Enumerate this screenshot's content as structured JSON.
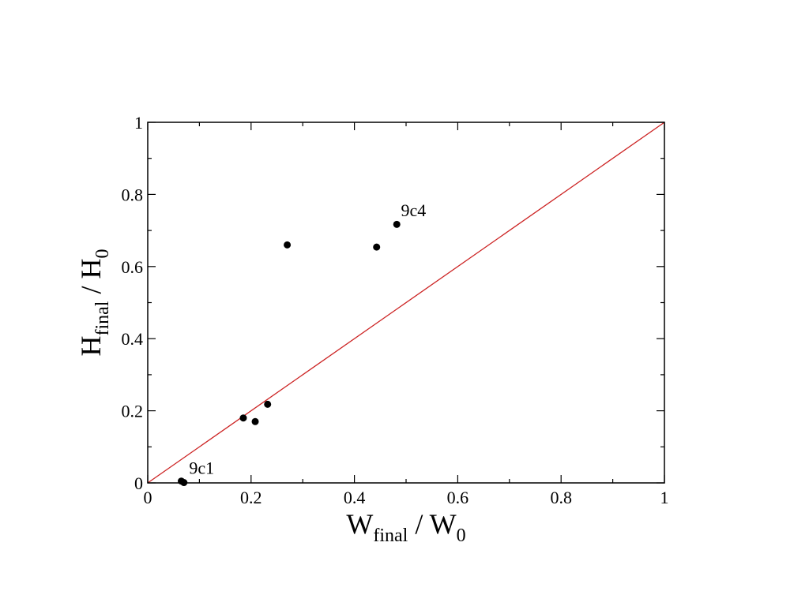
{
  "chart_data": {
    "type": "scatter",
    "xlabel": {
      "main": "W",
      "sub": "final",
      "suffix": " / W",
      "suffix_sub": "0"
    },
    "ylabel": {
      "main": "H",
      "sub": "final",
      "suffix": " / H",
      "suffix_sub": "0"
    },
    "xlim": [
      0,
      1
    ],
    "ylim": [
      0,
      1
    ],
    "x_ticks": [
      0,
      0.2,
      0.4,
      0.6,
      0.8,
      1
    ],
    "y_ticks": [
      0,
      0.2,
      0.4,
      0.6,
      0.8,
      1
    ],
    "x_tick_labels": [
      "0",
      "0.2",
      "0.4",
      "0.6",
      "0.8",
      "1"
    ],
    "y_tick_labels": [
      "0",
      "0.2",
      "0.4",
      "0.6",
      "0.8",
      "1"
    ],
    "grid": false,
    "points": [
      {
        "x": 0.065,
        "y": 0.005
      },
      {
        "x": 0.07,
        "y": 0.001
      },
      {
        "x": 0.185,
        "y": 0.18
      },
      {
        "x": 0.208,
        "y": 0.17
      },
      {
        "x": 0.232,
        "y": 0.218
      },
      {
        "x": 0.27,
        "y": 0.66
      },
      {
        "x": 0.443,
        "y": 0.654
      },
      {
        "x": 0.482,
        "y": 0.717
      }
    ],
    "reference_line": {
      "x": [
        0,
        1
      ],
      "y": [
        0,
        1
      ],
      "color": "#cc2222"
    },
    "annotations": [
      {
        "text": "9c4",
        "x": 0.49,
        "y": 0.74
      },
      {
        "text": "9c1",
        "x": 0.08,
        "y": 0.025
      }
    ],
    "marker_color": "#000000"
  }
}
